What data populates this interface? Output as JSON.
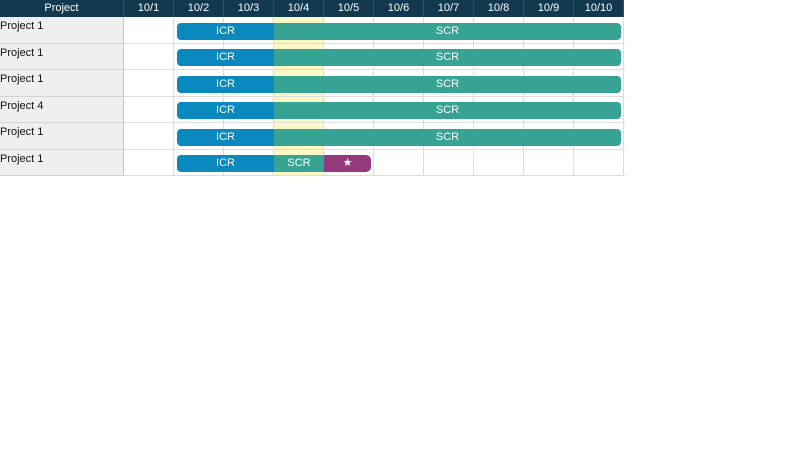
{
  "header": {
    "project_label": "Project",
    "dates": [
      "10/1",
      "10/2",
      "10/3",
      "10/4",
      "10/5",
      "10/6",
      "10/7",
      "10/8",
      "10/9",
      "10/10"
    ]
  },
  "today_date": "10/4",
  "colors": {
    "header_bg": "#12394f",
    "icr": "#0a89bf",
    "scr": "#37a395",
    "milestone": "#94397b",
    "today_highlight": "#fbf8c6"
  },
  "rows": [
    {
      "project": "Project 1",
      "segments": [
        {
          "label": "ICR",
          "type": "icr",
          "start": "10/2",
          "end": "10/3"
        },
        {
          "label": "SCR",
          "type": "scr",
          "start": "10/4",
          "end": "10/10"
        }
      ]
    },
    {
      "project": "Project 1",
      "segments": [
        {
          "label": "ICR",
          "type": "icr",
          "start": "10/2",
          "end": "10/3"
        },
        {
          "label": "SCR",
          "type": "scr",
          "start": "10/4",
          "end": "10/10"
        }
      ]
    },
    {
      "project": "Project 1",
      "segments": [
        {
          "label": "ICR",
          "type": "icr",
          "start": "10/2",
          "end": "10/3"
        },
        {
          "label": "SCR",
          "type": "scr",
          "start": "10/4",
          "end": "10/10"
        }
      ]
    },
    {
      "project": "Project 4",
      "segments": [
        {
          "label": "ICR",
          "type": "icr",
          "start": "10/2",
          "end": "10/3"
        },
        {
          "label": "SCR",
          "type": "scr",
          "start": "10/4",
          "end": "10/10"
        }
      ]
    },
    {
      "project": "Project 1",
      "segments": [
        {
          "label": "ICR",
          "type": "icr",
          "start": "10/2",
          "end": "10/3"
        },
        {
          "label": "SCR",
          "type": "scr",
          "start": "10/4",
          "end": "10/10"
        }
      ]
    },
    {
      "project": "Project 1",
      "segments": [
        {
          "label": "ICR",
          "type": "icr",
          "start": "10/2",
          "end": "10/3"
        },
        {
          "label": "SCR",
          "type": "scr",
          "start": "10/4",
          "end": "10/4"
        },
        {
          "label": "★",
          "type": "star",
          "start": "10/5",
          "end": "10/5",
          "icon": "star-icon"
        }
      ]
    }
  ]
}
